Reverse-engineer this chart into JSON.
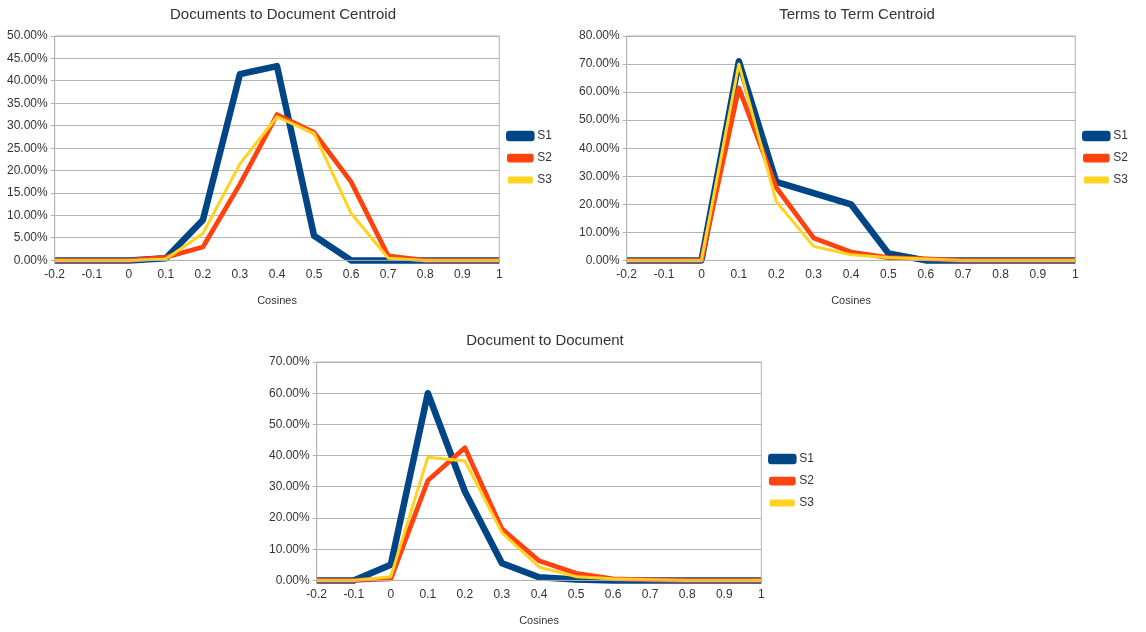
{
  "chart_data": [
    {
      "type": "line",
      "title": "Documents to Document Centroid",
      "xlabel": "Cosines",
      "categories": [
        "-0.2",
        "-0.1",
        "0",
        "0.1",
        "0.2",
        "0.3",
        "0.4",
        "0.5",
        "0.6",
        "0.7",
        "0.8",
        "0.9",
        "1"
      ],
      "series": [
        {
          "name": "S1",
          "color": "#004586",
          "values": [
            0,
            0,
            0,
            0.5,
            9,
            41.5,
            43.3,
            5.5,
            0,
            0,
            0,
            0,
            0
          ]
        },
        {
          "name": "S2",
          "color": "#ff420e",
          "values": [
            0,
            0,
            0,
            0.7,
            3,
            17,
            32.5,
            28.5,
            17.5,
            1,
            0,
            0,
            0
          ]
        },
        {
          "name": "S3",
          "color": "#ffd320",
          "values": [
            0,
            0,
            0,
            0.3,
            6,
            21.5,
            32,
            28.3,
            10.5,
            0.5,
            0,
            0,
            0
          ]
        }
      ],
      "ylim": [
        0,
        50
      ],
      "yticks": [
        {
          "value": 0,
          "label": "0.00%"
        },
        {
          "value": 5,
          "label": "5.00%"
        },
        {
          "value": 10,
          "label": "10.00%"
        },
        {
          "value": 15,
          "label": "15.00%"
        },
        {
          "value": 20,
          "label": "20.00%"
        },
        {
          "value": 25,
          "label": "25.00%"
        },
        {
          "value": 30,
          "label": "30.00%"
        },
        {
          "value": 35,
          "label": "35.00%"
        },
        {
          "value": 40,
          "label": "40.00%"
        },
        {
          "value": 45,
          "label": "45.00%"
        },
        {
          "value": 50,
          "label": "50.00%"
        }
      ],
      "grid": "y",
      "legend": "right",
      "marker": "none",
      "line_style": "solid"
    },
    {
      "type": "line",
      "title": "Terms to Term Centroid",
      "xlabel": "Cosines",
      "categories": [
        "-0.2",
        "-0.1",
        "0",
        "0.1",
        "0.2",
        "0.3",
        "0.4",
        "0.5",
        "0.6",
        "0.7",
        "0.8",
        "0.9",
        "1"
      ],
      "series": [
        {
          "name": "S1",
          "color": "#004586",
          "values": [
            0,
            0,
            0,
            71,
            28,
            24,
            20,
            2.5,
            0,
            0,
            0,
            0,
            0
          ]
        },
        {
          "name": "S2",
          "color": "#ff420e",
          "values": [
            0,
            0,
            0,
            61.5,
            26,
            8,
            3,
            1,
            0.5,
            0,
            0,
            0,
            0
          ]
        },
        {
          "name": "S3",
          "color": "#ffd320",
          "values": [
            0,
            0,
            0,
            70,
            21,
            5,
            2,
            1,
            0.5,
            0,
            0,
            0,
            0
          ]
        }
      ],
      "ylim": [
        0,
        80
      ],
      "yticks": [
        {
          "value": 0,
          "label": "0.00%"
        },
        {
          "value": 10,
          "label": "10.00%"
        },
        {
          "value": 20,
          "label": "20.00%"
        },
        {
          "value": 30,
          "label": "30.00%"
        },
        {
          "value": 40,
          "label": "40.00%"
        },
        {
          "value": 50,
          "label": "50.00%"
        },
        {
          "value": 60,
          "label": "60.00%"
        },
        {
          "value": 70,
          "label": "70.00%"
        },
        {
          "value": 80,
          "label": "80.00%"
        }
      ],
      "grid": "y",
      "legend": "right",
      "marker": "none",
      "line_style": "solid"
    },
    {
      "type": "line",
      "title": "Document to Document",
      "xlabel": "Cosines",
      "categories": [
        "-0.2",
        "-0.1",
        "0",
        "0.1",
        "0.2",
        "0.3",
        "0.4",
        "0.5",
        "0.6",
        "0.7",
        "0.8",
        "0.9",
        "1"
      ],
      "series": [
        {
          "name": "S1",
          "color": "#004586",
          "values": [
            0,
            0,
            5,
            60,
            28.5,
            5.5,
            1,
            0.3,
            0,
            0,
            0,
            0,
            0
          ]
        },
        {
          "name": "S2",
          "color": "#ff420e",
          "values": [
            0,
            0,
            0.5,
            32,
            42.5,
            16.5,
            6.3,
            2.3,
            0.5,
            0.2,
            0,
            0,
            0
          ]
        },
        {
          "name": "S3",
          "color": "#ffd320",
          "values": [
            0,
            0,
            1.2,
            39.5,
            38.3,
            15.3,
            4.3,
            1.2,
            0.5,
            0.2,
            0,
            0,
            0
          ]
        }
      ],
      "ylim": [
        0,
        70
      ],
      "yticks": [
        {
          "value": 0,
          "label": "0.00%"
        },
        {
          "value": 10,
          "label": "10.00%"
        },
        {
          "value": 20,
          "label": "20.00%"
        },
        {
          "value": 30,
          "label": "30.00%"
        },
        {
          "value": 40,
          "label": "40.00%"
        },
        {
          "value": 50,
          "label": "50.00%"
        },
        {
          "value": 60,
          "label": "60.00%"
        },
        {
          "value": 70,
          "label": "70.00%"
        }
      ],
      "grid": "y",
      "legend": "right",
      "marker": "none",
      "line_style": "solid"
    }
  ]
}
